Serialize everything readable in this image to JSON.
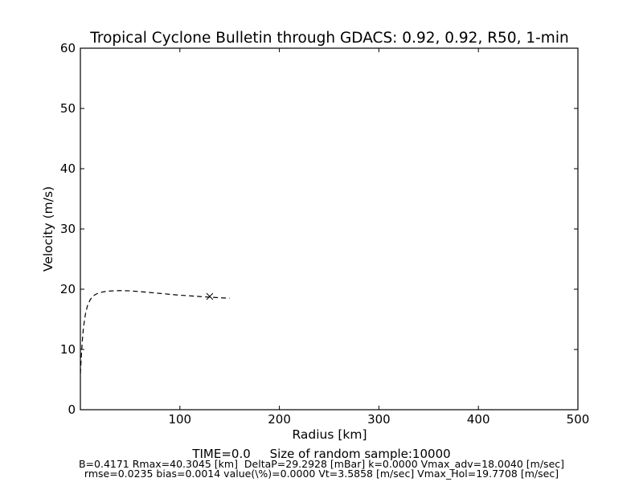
{
  "chart_data": {
    "type": "line",
    "title": "Tropical Cyclone Bulletin through GDACS: 0.92, 0.92, R50, 1-min",
    "xlabel": "Radius [km]",
    "ylabel": "Velocity (m/s)",
    "xlim": [
      0,
      500
    ],
    "ylim": [
      0,
      60
    ],
    "xticks": [
      100,
      200,
      300,
      400,
      500
    ],
    "yticks": [
      0,
      10,
      20,
      30,
      40,
      50,
      60
    ],
    "grid": false,
    "series": [
      {
        "style": "dashed",
        "color": "#000000",
        "x": [
          0,
          1,
          2,
          3,
          5,
          7,
          10,
          13,
          16,
          20,
          25,
          30,
          40,
          50,
          60,
          70,
          80,
          90,
          100,
          110,
          120,
          130,
          140,
          150
        ],
        "y": [
          6.0,
          9.0,
          11.5,
          13.5,
          15.8,
          17.2,
          18.3,
          18.9,
          19.2,
          19.45,
          19.62,
          19.7,
          19.77,
          19.72,
          19.6,
          19.45,
          19.3,
          19.15,
          19.0,
          18.9,
          18.78,
          18.68,
          18.58,
          18.5
        ]
      }
    ],
    "markers": [
      {
        "symbol": "x",
        "x": 130,
        "y": 18.8
      }
    ]
  },
  "footer": {
    "time_text": "TIME=0.0     Size of random sample:10000",
    "params_text": "B=0.4171 Rmax=40.3045 [km]  DeltaP=29.2928 [mBar] k=0.0000 Vmax_adv=18.0040 [m/sec]",
    "stats_text": "rmse=0.0235 bias=0.0014 value(\\%)=0.0000 Vt=3.5858 [m/sec] Vmax_Hol=19.7708 [m/sec]"
  }
}
